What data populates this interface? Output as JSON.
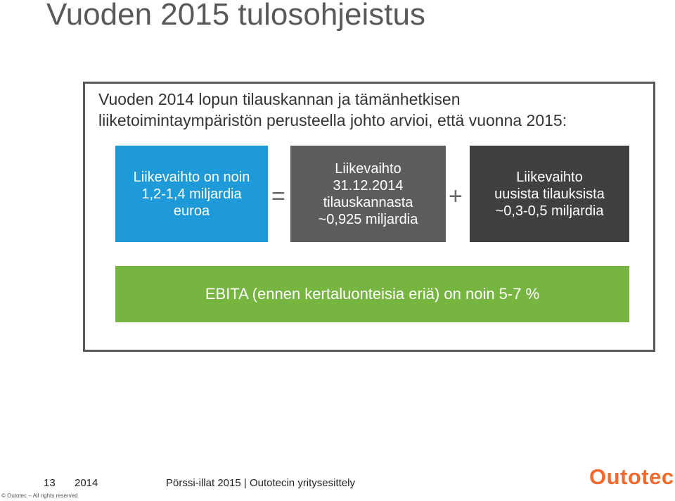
{
  "slide": {
    "title": "Vuoden 2015 tulosohjeistus"
  },
  "intro": {
    "line1": "Vuoden 2014 lopun tilauskannan ja tämänhetkisen",
    "line2": "liiketoimintaympäristön perusteella johto arvioi, että vuonna 2015:"
  },
  "boxes": {
    "revenue": [
      "Liikevaihto on noin",
      "1,2-1,4 miljardia",
      "euroa"
    ],
    "equals": "=",
    "order_book": [
      "Liikevaihto",
      "31.12.2014",
      "tilauskannasta",
      "~0,925 miljardia"
    ],
    "plus": "+",
    "new_orders": [
      "Liikevaihto",
      "uusista tilauksista",
      "~0,3-0,5 miljardia"
    ]
  },
  "ebita": "EBITA (ennen kertaluonteisia eriä) on noin 5-7 %",
  "footer": {
    "page_number": "13",
    "year": "2014",
    "text": "Pörssi-illat 2015  |  Outotecin yritysesittely",
    "copyright": "© Outotec – All rights reserved"
  },
  "logo": {
    "text": "Outotec",
    "color": "#f26a2e"
  },
  "colors": {
    "blue": "#1f9ad8",
    "gray_dark": "#404040",
    "gray_mid": "#5d5d5d",
    "green": "#76b540"
  }
}
